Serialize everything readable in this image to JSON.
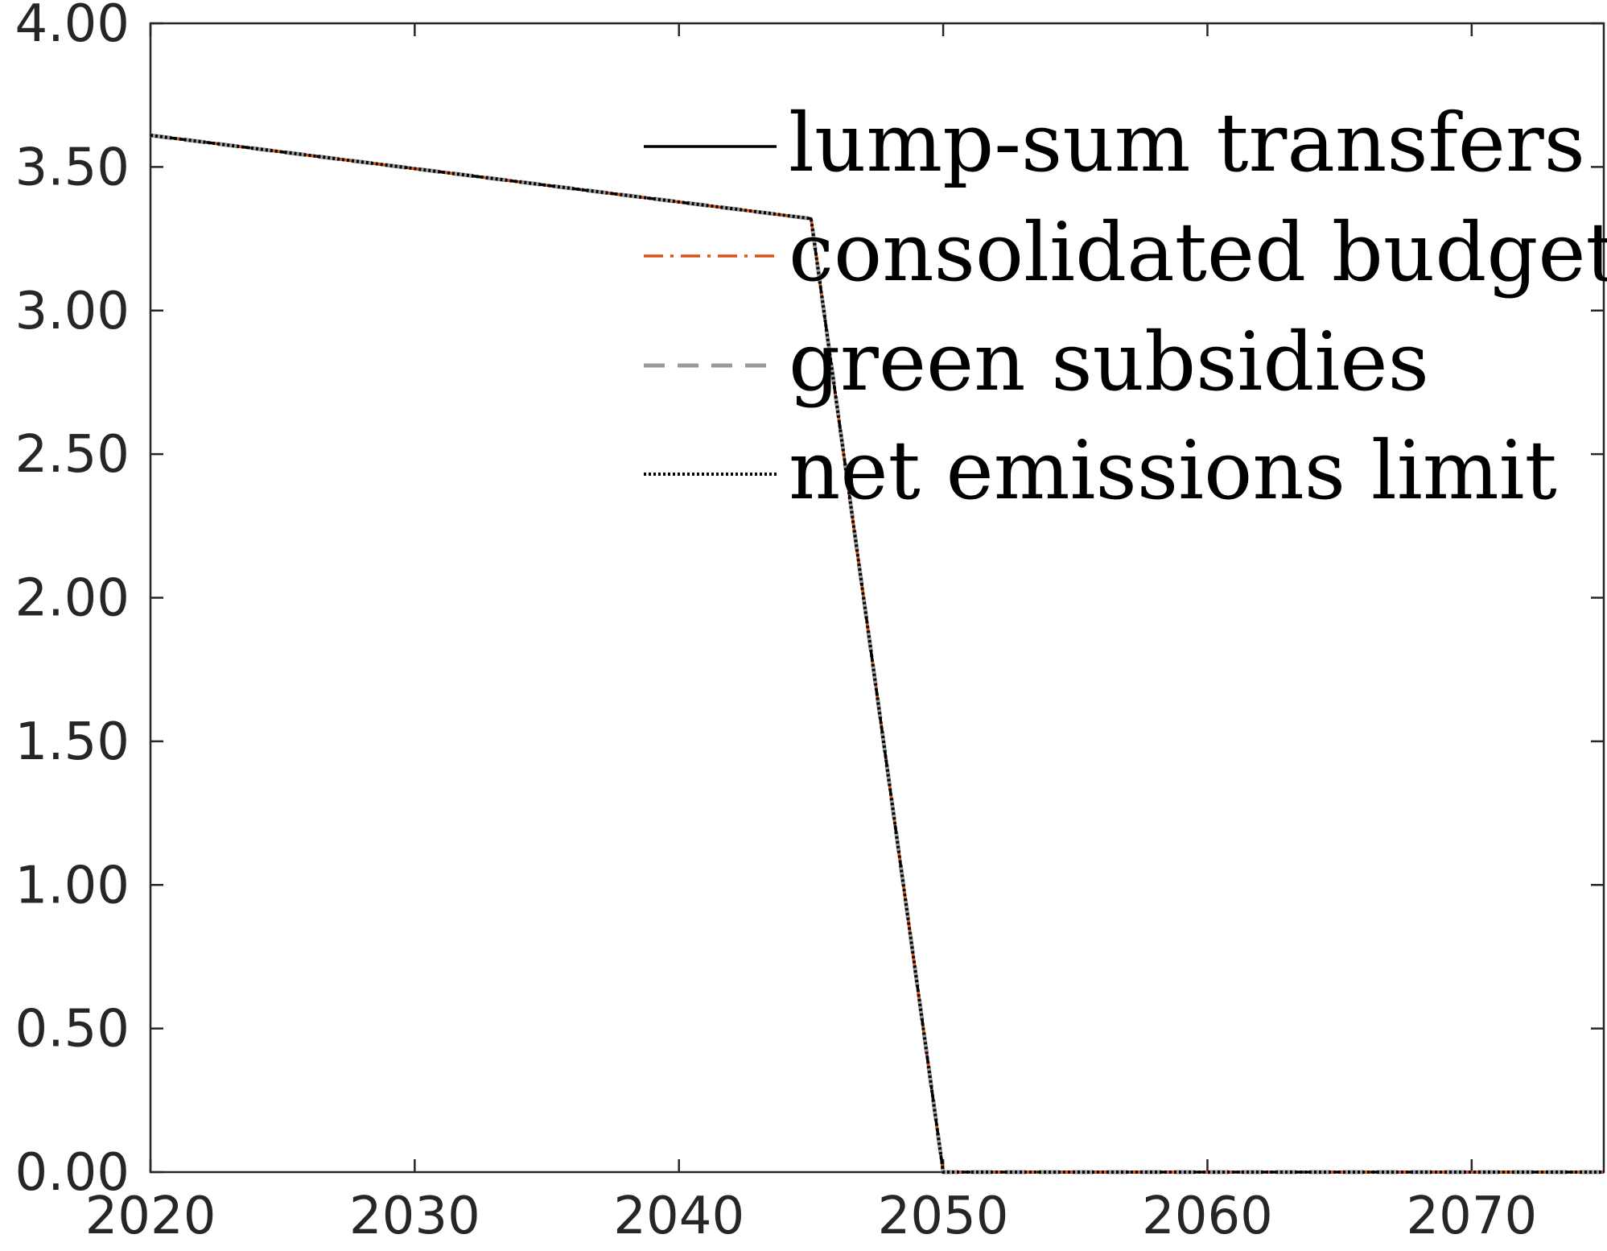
{
  "chart_data": {
    "type": "line",
    "title": "",
    "xlabel": "",
    "ylabel": "",
    "xlim": [
      2020,
      2075
    ],
    "ylim": [
      0,
      4
    ],
    "x_ticks": [
      2020,
      2030,
      2040,
      2050,
      2060,
      2070
    ],
    "x_tick_labels": [
      "2020",
      "2030",
      "2040",
      "2050",
      "2060",
      "2070"
    ],
    "y_ticks": [
      0,
      0.5,
      1,
      1.5,
      2,
      2.5,
      3,
      3.5,
      4
    ],
    "y_tick_labels": [
      "0.00",
      "0.50",
      "1.00",
      "1.50",
      "2.00",
      "2.50",
      "3.00",
      "3.50",
      "4.00"
    ],
    "grid": false,
    "legend_position": "top-right",
    "series": [
      {
        "name": "lump-sum transfers",
        "color": "#000000",
        "style": "solid",
        "x": [
          2020,
          2045,
          2050,
          2075
        ],
        "y": [
          3.61,
          3.32,
          0,
          0
        ]
      },
      {
        "name": "consolidated budget",
        "color": "#D95319",
        "style": "dashdot",
        "x": [
          2020,
          2045,
          2050,
          2075
        ],
        "y": [
          3.61,
          3.32,
          0,
          0
        ]
      },
      {
        "name": "green subsidies",
        "color": "#999999",
        "style": "dashed",
        "x": [
          2020,
          2045,
          2050,
          2075
        ],
        "y": [
          3.61,
          3.32,
          0,
          0
        ]
      },
      {
        "name": "net emissions limit",
        "color": "#000000",
        "style": "dotted",
        "x": [
          2020,
          2045,
          2050,
          2075
        ],
        "y": [
          3.61,
          3.32,
          0,
          0
        ]
      }
    ]
  }
}
